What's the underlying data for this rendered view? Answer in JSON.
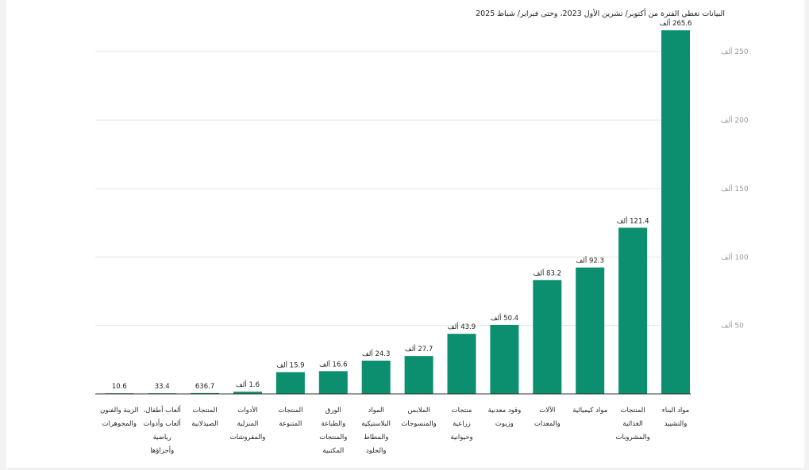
{
  "note": "البيانات تغطي الفترة من أكتوبر/ تشرين الأول 2023، وحتى فبراير/ شباط 2025",
  "colors": {
    "bar": "#0b8f6e",
    "grid": "#e6e6e6",
    "axis": "#333333"
  },
  "chart_data": {
    "type": "bar",
    "title": "",
    "xlabel": "",
    "ylabel": "",
    "ylim": [
      0,
      275
    ],
    "yticks": [
      50,
      100,
      150,
      200,
      250
    ],
    "ytick_labels": [
      "50 ألف",
      "100 ألف",
      "150 ألف",
      "200 ألف",
      "250 ألف"
    ],
    "grid": true,
    "orientation": "right-to-left",
    "categories": [
      [
        "مواد البناء",
        "والتشييد"
      ],
      [
        "المنتجات",
        "الغذائية",
        "والمشروبات"
      ],
      [
        "مواد كيميائية"
      ],
      [
        "الآلات",
        "والمعدات"
      ],
      [
        "وقود معدنية",
        "وزيوت"
      ],
      [
        "منتجات",
        "زراعية",
        "وحيوانية"
      ],
      [
        "الملابس",
        "والمنسوجات"
      ],
      [
        "المواد",
        "البلاستيكية",
        "والمطاط",
        "والجلود"
      ],
      [
        "الورق",
        "والطباعة",
        "والمنتجات",
        "المكتبية"
      ],
      [
        "المنتجات",
        "المتنوعة"
      ],
      [
        "الأدوات",
        "المنزلية",
        "والمفروشات"
      ],
      [
        "المنتجات",
        "الصيدلانية"
      ],
      [
        "ألعاب أطفال،",
        "ألعاب وأدوات",
        "رياضية",
        "وأجزاؤها"
      ],
      [
        "الزينة والفنون",
        "والمجوهرات"
      ]
    ],
    "values": [
      265.6,
      121.4,
      92.3,
      83.2,
      50.4,
      43.9,
      27.7,
      24.3,
      16.6,
      15.9,
      1.6,
      0.6367,
      0.0334,
      0.0106
    ],
    "value_labels": [
      "265.6 ألف",
      "121.4 ألف",
      "92.3 ألف",
      "83.2 ألف",
      "50.4 ألف",
      "43.9 ألف",
      "27.7 ألف",
      "24.3 ألف",
      "16.6 ألف",
      "15.9 ألف",
      "1.6 ألف",
      "636.7",
      "33.4",
      "10.6"
    ]
  }
}
